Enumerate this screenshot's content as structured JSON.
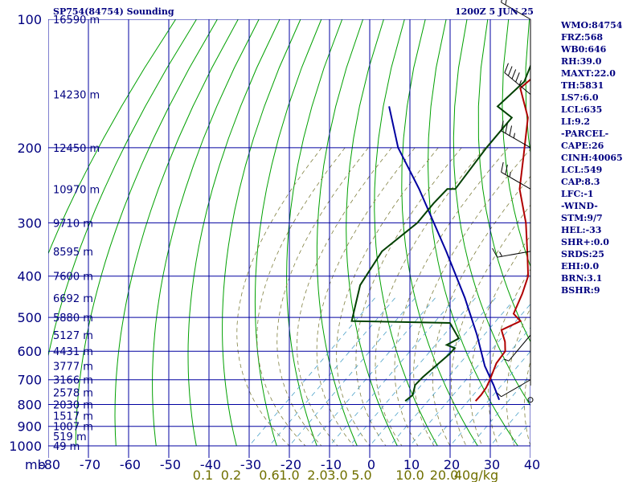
{
  "header": {
    "station": "SP754(84754) Sounding",
    "time": "1200Z  5 JUN 25"
  },
  "indices": [
    "WMO:84754",
    "FRZ:568",
    "WB0:646",
    "RH:39.0",
    "MAXT:22.0",
    "TH:5831",
    "LS7:6.0",
    "LCL:635",
    "LI:9.2",
    "-PARCEL-",
    "CAPE:26",
    "CINH:40065",
    "LCL:549",
    "CAP:8.3",
    "LFC:-1",
    "-WIND-",
    "STM:9/7",
    "HEL:-33",
    "SHR+:0.0",
    "SRDS:25",
    "EHI:0.0",
    "BRN:3.1",
    "BSHR:9"
  ],
  "colors": {
    "grid": "#0000a0",
    "dry_adiabat": "#00a000",
    "moist_adiabat": "#808040",
    "mixing_ratio": "#4aa0c8",
    "temperature": "#b00000",
    "dewpoint": "#004000",
    "parcel": "#0000a0",
    "labels": "#000080",
    "mixing_labels": "#707000",
    "wind": "#000000"
  },
  "chart_data": {
    "type": "skew-t",
    "unit_label": "mb",
    "pressure_axis": {
      "scale": "log",
      "range": [
        1000,
        100
      ],
      "ticks": [
        100,
        200,
        300,
        400,
        500,
        600,
        700,
        800,
        900,
        1000
      ]
    },
    "temperature_axis": {
      "range": [
        -80,
        40
      ],
      "ticks": [
        -80,
        -70,
        -60,
        -50,
        -40,
        -30,
        -20,
        -10,
        0,
        10,
        20,
        30,
        40
      ]
    },
    "height_labels": [
      {
        "p": 100,
        "label": "16590 m"
      },
      {
        "p": 150,
        "label": "14230 m"
      },
      {
        "p": 200,
        "label": "12450 m"
      },
      {
        "p": 250,
        "label": "10970 m"
      },
      {
        "p": 300,
        "label": "9710 m"
      },
      {
        "p": 350,
        "label": "8595 m"
      },
      {
        "p": 400,
        "label": "7600 m"
      },
      {
        "p": 450,
        "label": "6692 m"
      },
      {
        "p": 500,
        "label": "5880 m"
      },
      {
        "p": 550,
        "label": "5127 m"
      },
      {
        "p": 600,
        "label": "4431 m"
      },
      {
        "p": 650,
        "label": "3777 m"
      },
      {
        "p": 700,
        "label": "3166 m"
      },
      {
        "p": 750,
        "label": "2578 m"
      },
      {
        "p": 800,
        "label": "2030 m"
      },
      {
        "p": 850,
        "label": "1517 m"
      },
      {
        "p": 900,
        "label": "1007 m"
      },
      {
        "p": 950,
        "label": "519 m"
      },
      {
        "p": 1000,
        "label": "49 m"
      }
    ],
    "mixing_ratio_labels": [
      {
        "label": "0.1",
        "x": -41.5
      },
      {
        "label": "0.2",
        "x": -34.5
      },
      {
        "label": "0.6",
        "x": -25
      },
      {
        "label": "1.0",
        "x": -20
      },
      {
        "label": "2.0",
        "x": -13
      },
      {
        "label": "3.0",
        "x": -8
      },
      {
        "label": "5.0",
        "x": -2
      },
      {
        "label": "10.0",
        "x": 10
      },
      {
        "label": "20.0",
        "x": 18.5
      },
      {
        "label": "40g/kg",
        "x": 26.5
      }
    ],
    "temperature_profile": [
      {
        "p": 785,
        "t": 12.5
      },
      {
        "p": 760,
        "t": 12
      },
      {
        "p": 730,
        "t": 11
      },
      {
        "p": 700,
        "t": 9.5
      },
      {
        "p": 640,
        "t": 6
      },
      {
        "p": 600,
        "t": 4.5
      },
      {
        "p": 570,
        "t": 1.5
      },
      {
        "p": 535,
        "t": -3
      },
      {
        "p": 510,
        "t": -1
      },
      {
        "p": 490,
        "t": -5
      },
      {
        "p": 440,
        "t": -9
      },
      {
        "p": 400,
        "t": -13
      },
      {
        "p": 355,
        "t": -20
      },
      {
        "p": 300,
        "t": -30
      },
      {
        "p": 250,
        "t": -42
      },
      {
        "p": 210,
        "t": -51
      },
      {
        "p": 170,
        "t": -62
      },
      {
        "p": 145,
        "t": -73
      },
      {
        "p": 100,
        "t": -74
      }
    ],
    "dewpoint_profile": [
      {
        "p": 785,
        "t": -5
      },
      {
        "p": 760,
        "t": -5
      },
      {
        "p": 720,
        "t": -7.5
      },
      {
        "p": 690,
        "t": -8
      },
      {
        "p": 610,
        "t": -8.5
      },
      {
        "p": 590,
        "t": -9
      },
      {
        "p": 580,
        "t": -12
      },
      {
        "p": 560,
        "t": -11
      },
      {
        "p": 515,
        "t": -18
      },
      {
        "p": 510,
        "t": -43
      },
      {
        "p": 420,
        "t": -52
      },
      {
        "p": 350,
        "t": -57
      },
      {
        "p": 300,
        "t": -57
      },
      {
        "p": 270,
        "t": -59
      },
      {
        "p": 250,
        "t": -60
      },
      {
        "p": 250,
        "t": -58
      },
      {
        "p": 200,
        "t": -63
      },
      {
        "p": 170,
        "t": -66
      },
      {
        "p": 160,
        "t": -73
      },
      {
        "p": 140,
        "t": -74
      },
      {
        "p": 120,
        "t": -80
      }
    ],
    "parcel_profile": [
      {
        "p": 780,
        "t": 18
      },
      {
        "p": 720,
        "t": 12
      },
      {
        "p": 650,
        "t": 4
      },
      {
        "p": 550,
        "t": -7.5
      },
      {
        "p": 450,
        "t": -22
      },
      {
        "p": 350,
        "t": -41
      },
      {
        "p": 250,
        "t": -67
      },
      {
        "p": 200,
        "t": -85
      },
      {
        "p": 160,
        "t": -100
      }
    ],
    "wind_barbs": [
      {
        "p": 100,
        "dir": 300,
        "speed": 20
      },
      {
        "p": 150,
        "dir": 310,
        "speed": 45
      },
      {
        "p": 200,
        "dir": 300,
        "speed": 35
      },
      {
        "p": 250,
        "dir": 300,
        "speed": 25
      },
      {
        "p": 350,
        "dir": 260,
        "speed": 15
      },
      {
        "p": 550,
        "dir": 220,
        "speed": 5
      },
      {
        "p": 700,
        "dir": 240,
        "speed": 5
      },
      {
        "p": 780,
        "dir": 0,
        "speed": 0
      }
    ]
  }
}
